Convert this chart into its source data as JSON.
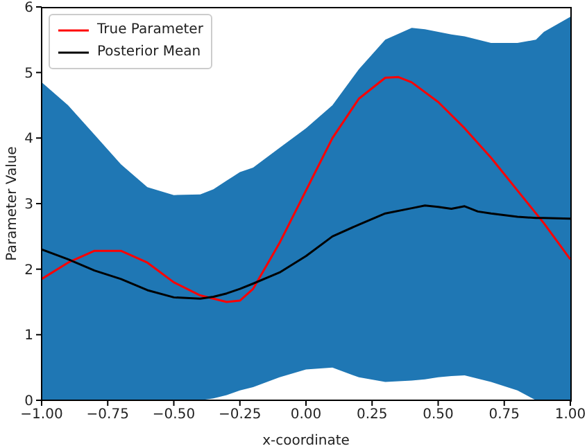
{
  "chart_data": {
    "type": "line",
    "xlabel": "x-coordinate",
    "ylabel": "Parameter Value",
    "xlim": [
      -1,
      1
    ],
    "ylim": [
      0,
      6
    ],
    "xticks": [
      {
        "value": -1,
        "label": "−1.00"
      },
      {
        "value": -0.75,
        "label": "−0.75"
      },
      {
        "value": -0.5,
        "label": "−0.50"
      },
      {
        "value": -0.25,
        "label": "−0.25"
      },
      {
        "value": 0,
        "label": "0.00"
      },
      {
        "value": 0.25,
        "label": "0.25"
      },
      {
        "value": 0.5,
        "label": "0.50"
      },
      {
        "value": 0.75,
        "label": "0.75"
      },
      {
        "value": 1,
        "label": "1.00"
      }
    ],
    "yticks": [
      0,
      1,
      2,
      3,
      4,
      5,
      6
    ],
    "grid": false,
    "legend": "top left",
    "marker": "none",
    "line_style": "solid",
    "series": [
      {
        "name": "True Parameter",
        "color": "#ff0000",
        "x": [
          -1,
          -0.9,
          -0.8,
          -0.7,
          -0.6,
          -0.5,
          -0.4,
          -0.3,
          -0.25,
          -0.2,
          -0.1,
          0,
          0.1,
          0.2,
          0.3,
          0.35,
          0.4,
          0.5,
          0.6,
          0.7,
          0.8,
          0.9,
          1
        ],
        "values": [
          1.85,
          2.1,
          2.28,
          2.28,
          2.1,
          1.8,
          1.6,
          1.5,
          1.52,
          1.7,
          2.4,
          3.2,
          4.0,
          4.6,
          4.92,
          4.93,
          4.85,
          4.55,
          4.15,
          3.7,
          3.2,
          2.7,
          2.15
        ]
      },
      {
        "name": "Posterior Mean",
        "color": "#000000",
        "x": [
          -1,
          -0.9,
          -0.8,
          -0.7,
          -0.6,
          -0.5,
          -0.4,
          -0.35,
          -0.3,
          -0.25,
          -0.2,
          -0.1,
          0,
          0.1,
          0.2,
          0.3,
          0.4,
          0.45,
          0.5,
          0.55,
          0.6,
          0.65,
          0.7,
          0.8,
          0.87,
          0.9,
          1
        ],
        "values": [
          2.3,
          2.15,
          1.98,
          1.85,
          1.68,
          1.57,
          1.55,
          1.58,
          1.63,
          1.7,
          1.78,
          1.95,
          2.2,
          2.5,
          2.68,
          2.85,
          2.93,
          2.97,
          2.95,
          2.92,
          2.96,
          2.88,
          2.85,
          2.8,
          2.78,
          2.78,
          2.77
        ],
        "lower": [
          0,
          0,
          0,
          0,
          0,
          0,
          0,
          0.03,
          0.08,
          0.15,
          0.2,
          0.35,
          0.47,
          0.5,
          0.35,
          0.28,
          0.3,
          0.32,
          0.35,
          0.37,
          0.38,
          0.33,
          0.28,
          0.15,
          0,
          0,
          0
        ],
        "upper": [
          4.85,
          4.5,
          4.05,
          3.6,
          3.25,
          3.13,
          3.14,
          3.22,
          3.35,
          3.48,
          3.55,
          3.85,
          4.15,
          4.5,
          5.05,
          5.5,
          5.68,
          5.66,
          5.62,
          5.58,
          5.55,
          5.5,
          5.45,
          5.45,
          5.5,
          5.62,
          5.85
        ]
      }
    ]
  }
}
